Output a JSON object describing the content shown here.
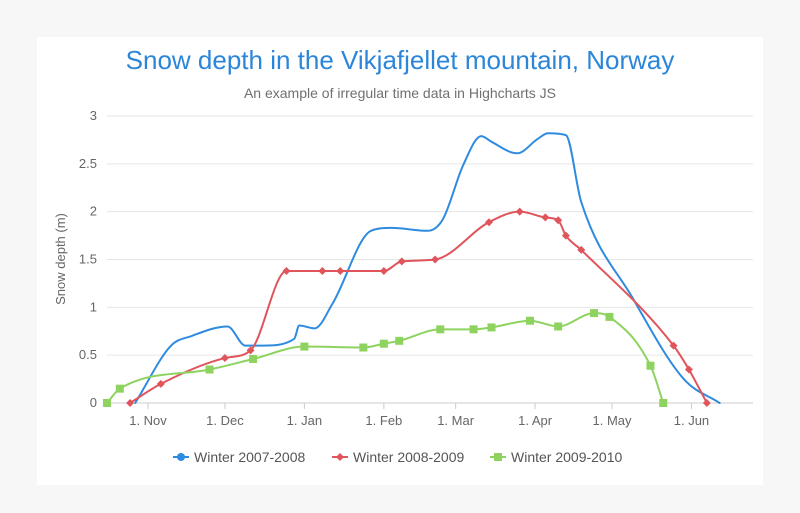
{
  "chart_data": {
    "type": "line",
    "title": "Snow depth in the Vikjafjellet mountain, Norway",
    "subtitle": "An example of irregular time data in Highcharts JS",
    "ylabel": "Snow depth (m)",
    "xlabel": "",
    "ylim": [
      0,
      3
    ],
    "yticks": [
      "0",
      "0.5",
      "1",
      "1.5",
      "2",
      "2.5",
      "3"
    ],
    "xticks": [
      {
        "date": "1970-11-01",
        "label": "1. Nov"
      },
      {
        "date": "1970-12-01",
        "label": "1. Dec"
      },
      {
        "date": "1971-01-01",
        "label": "1. Jan"
      },
      {
        "date": "1971-02-01",
        "label": "1. Feb"
      },
      {
        "date": "1971-03-01",
        "label": "1. Mar"
      },
      {
        "date": "1971-04-01",
        "label": "1. Apr"
      },
      {
        "date": "1971-05-01",
        "label": "1. May"
      },
      {
        "date": "1971-06-01",
        "label": "1. Jun"
      }
    ],
    "xlim": [
      "1970-10-16",
      "1971-06-25"
    ],
    "grid": true,
    "legend_position": "bottom-center",
    "series": [
      {
        "name": "Winter 2007-2008",
        "color": "#2f8be0",
        "marker": "circle",
        "show_markers": false,
        "points": [
          [
            "1970-10-27",
            0
          ],
          [
            "1970-11-10",
            0.6
          ],
          [
            "1970-11-18",
            0.7
          ],
          [
            "1970-12-02",
            0.8
          ],
          [
            "1970-12-09",
            0.6
          ],
          [
            "1970-12-16",
            0.6
          ],
          [
            "1970-12-28",
            0.67
          ],
          [
            "1970-12-30",
            0.81
          ],
          [
            "1971-01-05",
            0.78
          ],
          [
            "1971-01-12",
            1.04
          ],
          [
            "1971-01-27",
            1.8
          ],
          [
            "1971-02-04",
            1.83
          ],
          [
            "1971-02-18",
            1.8
          ],
          [
            "1971-02-24",
            1.92
          ],
          [
            "1971-03-04",
            2.49
          ],
          [
            "1971-03-11",
            2.79
          ],
          [
            "1971-03-15",
            2.73
          ],
          [
            "1971-03-25",
            2.61
          ],
          [
            "1971-04-02",
            2.76
          ],
          [
            "1971-04-06",
            2.82
          ],
          [
            "1971-04-13",
            2.8
          ],
          [
            "1971-04-19",
            2.1
          ],
          [
            "1971-05-09",
            1.1
          ],
          [
            "1971-05-29",
            0.25
          ],
          [
            "1971-06-12",
            0
          ]
        ]
      },
      {
        "name": "Winter 2008-2009",
        "color": "#e0545c",
        "marker": "diamond",
        "show_markers": true,
        "points": [
          [
            "1970-10-25",
            0
          ],
          [
            "1970-11-06",
            0.2
          ],
          [
            "1970-12-01",
            0.47
          ],
          [
            "1970-12-11",
            0.55
          ],
          [
            "1970-12-25",
            1.38
          ],
          [
            "1971-01-08",
            1.38
          ],
          [
            "1971-01-15",
            1.38
          ],
          [
            "1971-02-01",
            1.38
          ],
          [
            "1971-02-08",
            1.48
          ],
          [
            "1971-02-21",
            1.5
          ],
          [
            "1971-03-14",
            1.89
          ],
          [
            "1971-03-26",
            2
          ],
          [
            "1971-04-05",
            1.94
          ],
          [
            "1971-04-10",
            1.91
          ],
          [
            "1971-04-13",
            1.75
          ],
          [
            "1971-04-19",
            1.6
          ],
          [
            "1971-05-25",
            0.6
          ],
          [
            "1971-05-31",
            0.35
          ],
          [
            "1971-06-07",
            0
          ]
        ]
      },
      {
        "name": "Winter 2009-2010",
        "color": "#8ed35f",
        "marker": "square",
        "show_markers": true,
        "points": [
          [
            "1970-10-16",
            0
          ],
          [
            "1970-10-21",
            0.15
          ],
          [
            "1970-11-25",
            0.35
          ],
          [
            "1970-12-12",
            0.46
          ],
          [
            "1971-01-01",
            0.59
          ],
          [
            "1971-01-24",
            0.58
          ],
          [
            "1971-02-01",
            0.62
          ],
          [
            "1971-02-07",
            0.65
          ],
          [
            "1971-02-23",
            0.77
          ],
          [
            "1971-03-08",
            0.77
          ],
          [
            "1971-03-15",
            0.79
          ],
          [
            "1971-03-30",
            0.86
          ],
          [
            "1971-04-10",
            0.8
          ],
          [
            "1971-04-24",
            0.94
          ],
          [
            "1971-04-30",
            0.9
          ],
          [
            "1971-05-16",
            0.39
          ],
          [
            "1971-05-21",
            0
          ]
        ]
      }
    ]
  }
}
